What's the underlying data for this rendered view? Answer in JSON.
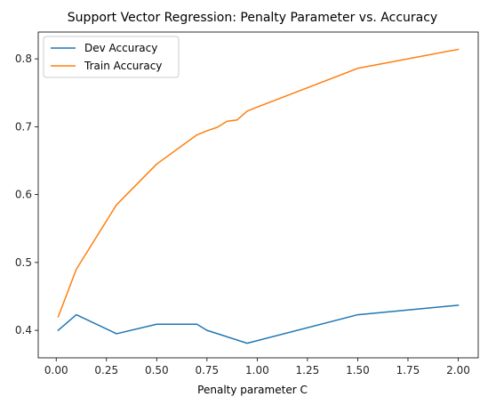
{
  "chart_data": {
    "type": "line",
    "title": "Support Vector Regression: Penalty Parameter vs. Accuracy",
    "xlabel": "Penalty parameter C",
    "ylabel": "",
    "xlim": [
      -0.0895,
      2.0995
    ],
    "ylim": [
      0.3595,
      0.8395
    ],
    "xticks": [
      0.0,
      0.25,
      0.5,
      0.75,
      1.0,
      1.25,
      1.5,
      1.75,
      2.0
    ],
    "xtick_labels": [
      "0.00",
      "0.25",
      "0.50",
      "0.75",
      "1.00",
      "1.25",
      "1.50",
      "1.75",
      "2.00"
    ],
    "yticks": [
      0.4,
      0.5,
      0.6,
      0.7,
      0.8
    ],
    "ytick_labels": [
      "0.4",
      "0.5",
      "0.6",
      "0.7",
      "0.8"
    ],
    "grid": false,
    "legend_position": "upper-left",
    "series": [
      {
        "name": "Dev Accuracy",
        "color": "#1f77b4",
        "x": [
          0.01,
          0.1,
          0.3,
          0.5,
          0.7,
          0.75,
          0.95,
          1.5,
          2.0
        ],
        "y": [
          0.4,
          0.423,
          0.395,
          0.409,
          0.409,
          0.4,
          0.381,
          0.423,
          0.437
        ]
      },
      {
        "name": "Train Accuracy",
        "color": "#ff7f0e",
        "x": [
          0.01,
          0.1,
          0.3,
          0.5,
          0.7,
          0.75,
          0.8,
          0.85,
          0.9,
          0.95,
          1.0,
          1.5,
          2.0
        ],
        "y": [
          0.42,
          0.49,
          0.585,
          0.645,
          0.688,
          0.694,
          0.699,
          0.708,
          0.71,
          0.723,
          0.729,
          0.786,
          0.814
        ]
      }
    ]
  }
}
